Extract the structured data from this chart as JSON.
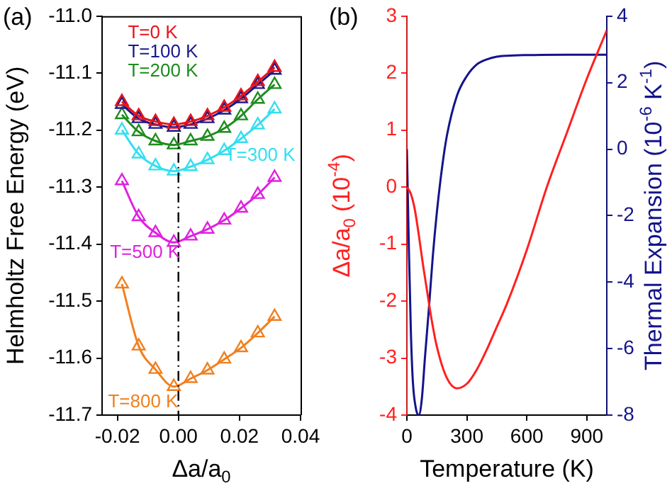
{
  "chart_data": [
    {
      "type": "line",
      "title": "(a)",
      "xlabel": "Δa/a$_{0}$",
      "ylabel": "Helmholtz Free Energy (eV)",
      "x": [
        -0.0185,
        -0.013,
        -0.0075,
        -0.0015,
        0.004,
        0.0095,
        0.015,
        0.0205,
        0.026,
        0.0315
      ],
      "series": [
        {
          "name": "T=0 K",
          "color": "#e8141c",
          "values": [
            -11.15,
            -11.175,
            -11.185,
            -11.19,
            -11.185,
            -11.175,
            -11.16,
            -11.14,
            -11.115,
            -11.09
          ]
        },
        {
          "name": "T=100 K",
          "color": "#1a1a8c",
          "values": [
            -11.155,
            -11.18,
            -11.19,
            -11.195,
            -11.19,
            -11.18,
            -11.165,
            -11.145,
            -11.12,
            -11.095
          ]
        },
        {
          "name": "T=200 K",
          "color": "#1e8c1e",
          "values": [
            -11.173,
            -11.203,
            -11.219,
            -11.226,
            -11.219,
            -11.211,
            -11.197,
            -11.175,
            -11.146,
            -11.12
          ]
        },
        {
          "name": "T=300 K",
          "color": "#33dff0",
          "values": [
            -11.2,
            -11.242,
            -11.263,
            -11.272,
            -11.264,
            -11.252,
            -11.236,
            -11.215,
            -11.191,
            -11.163
          ]
        },
        {
          "name": "T=500 K",
          "color": "#e020e0",
          "values": [
            -11.289,
            -11.352,
            -11.38,
            -11.397,
            -11.386,
            -11.374,
            -11.358,
            -11.337,
            -11.313,
            -11.283
          ]
        },
        {
          "name": "T=800 K",
          "color": "#f08020",
          "values": [
            -11.47,
            -11.579,
            -11.62,
            -11.65,
            -11.636,
            -11.621,
            -11.602,
            -11.582,
            -11.556,
            -11.527
          ]
        }
      ],
      "xlim": [
        -0.025,
        0.04
      ],
      "xticks": [
        {
          "value": -0.02,
          "label": "-0.02"
        },
        {
          "value": 0,
          "label": "0.00"
        },
        {
          "value": 0.02,
          "label": "0.02"
        },
        {
          "value": 0.04,
          "label": "0.04"
        }
      ],
      "ylim": [
        -11.7,
        -11.0
      ],
      "yticks": [
        {
          "value": -11.7,
          "label": "-11.7"
        },
        {
          "value": -11.6,
          "label": "-11.6"
        },
        {
          "value": -11.5,
          "label": "-11.5"
        },
        {
          "value": -11.4,
          "label": "-11.4"
        },
        {
          "value": -11.3,
          "label": "-11.3"
        },
        {
          "value": -11.2,
          "label": "-11.2"
        },
        {
          "value": -11.1,
          "label": "-11.1"
        },
        {
          "value": -11.0,
          "label": "-11.0"
        }
      ],
      "ref_lines": [
        {
          "axis": "x",
          "value": 0,
          "color": "#000000",
          "line_style": "dashed"
        }
      ],
      "marker": "triangle",
      "grid": false,
      "legend": false
    },
    {
      "type": "line",
      "title": "(b)",
      "xlabel": "Temperature (K)",
      "ylabel": "Δa/a$_{0}$ (10$^{-4}$)",
      "y2label": "Thermal Expansion (10$^{-6}$ K$^{-1}$)",
      "series": [
        {
          "color": "#ff2020",
          "x": [
            0,
            10,
            20,
            40,
            60,
            80,
            100,
            120,
            150,
            200,
            250,
            300,
            350,
            400,
            450,
            500,
            600,
            700,
            800,
            900,
            1000
          ],
          "values": [
            0,
            -0.05,
            -0.12,
            -0.4,
            -0.85,
            -1.35,
            -1.8,
            -2.25,
            -2.8,
            -3.35,
            -3.53,
            -3.45,
            -3.2,
            -2.85,
            -2.45,
            -2.05,
            -1.1,
            0,
            0.95,
            1.9,
            2.75
          ]
        },
        {
          "color": "#14148c",
          "axis": "y2",
          "x": [
            0,
            5,
            10,
            20,
            30,
            45,
            60,
            75,
            90,
            110,
            130,
            150,
            175,
            200,
            250,
            300,
            350,
            400,
            450,
            500,
            600,
            800,
            1000
          ],
          "values": [
            0,
            -1.5,
            -3,
            -5.5,
            -7,
            -7.8,
            -8,
            -7.5,
            -6.3,
            -4.8,
            -3.2,
            -1.9,
            -0.6,
            0.4,
            1.6,
            2.2,
            2.55,
            2.7,
            2.78,
            2.81,
            2.83,
            2.84,
            2.84
          ]
        }
      ],
      "xlim": [
        0,
        1000
      ],
      "xticks": [
        0,
        300,
        600,
        900
      ],
      "ylim": [
        -4,
        3
      ],
      "yticks": [
        -4,
        -3,
        -2,
        -1,
        0,
        1,
        2,
        3
      ],
      "y2lim": [
        -8,
        4
      ],
      "y2ticks": [
        -8,
        -6,
        -4,
        -2,
        0,
        2,
        4
      ],
      "marker": "none",
      "grid": false,
      "legend": false
    }
  ]
}
